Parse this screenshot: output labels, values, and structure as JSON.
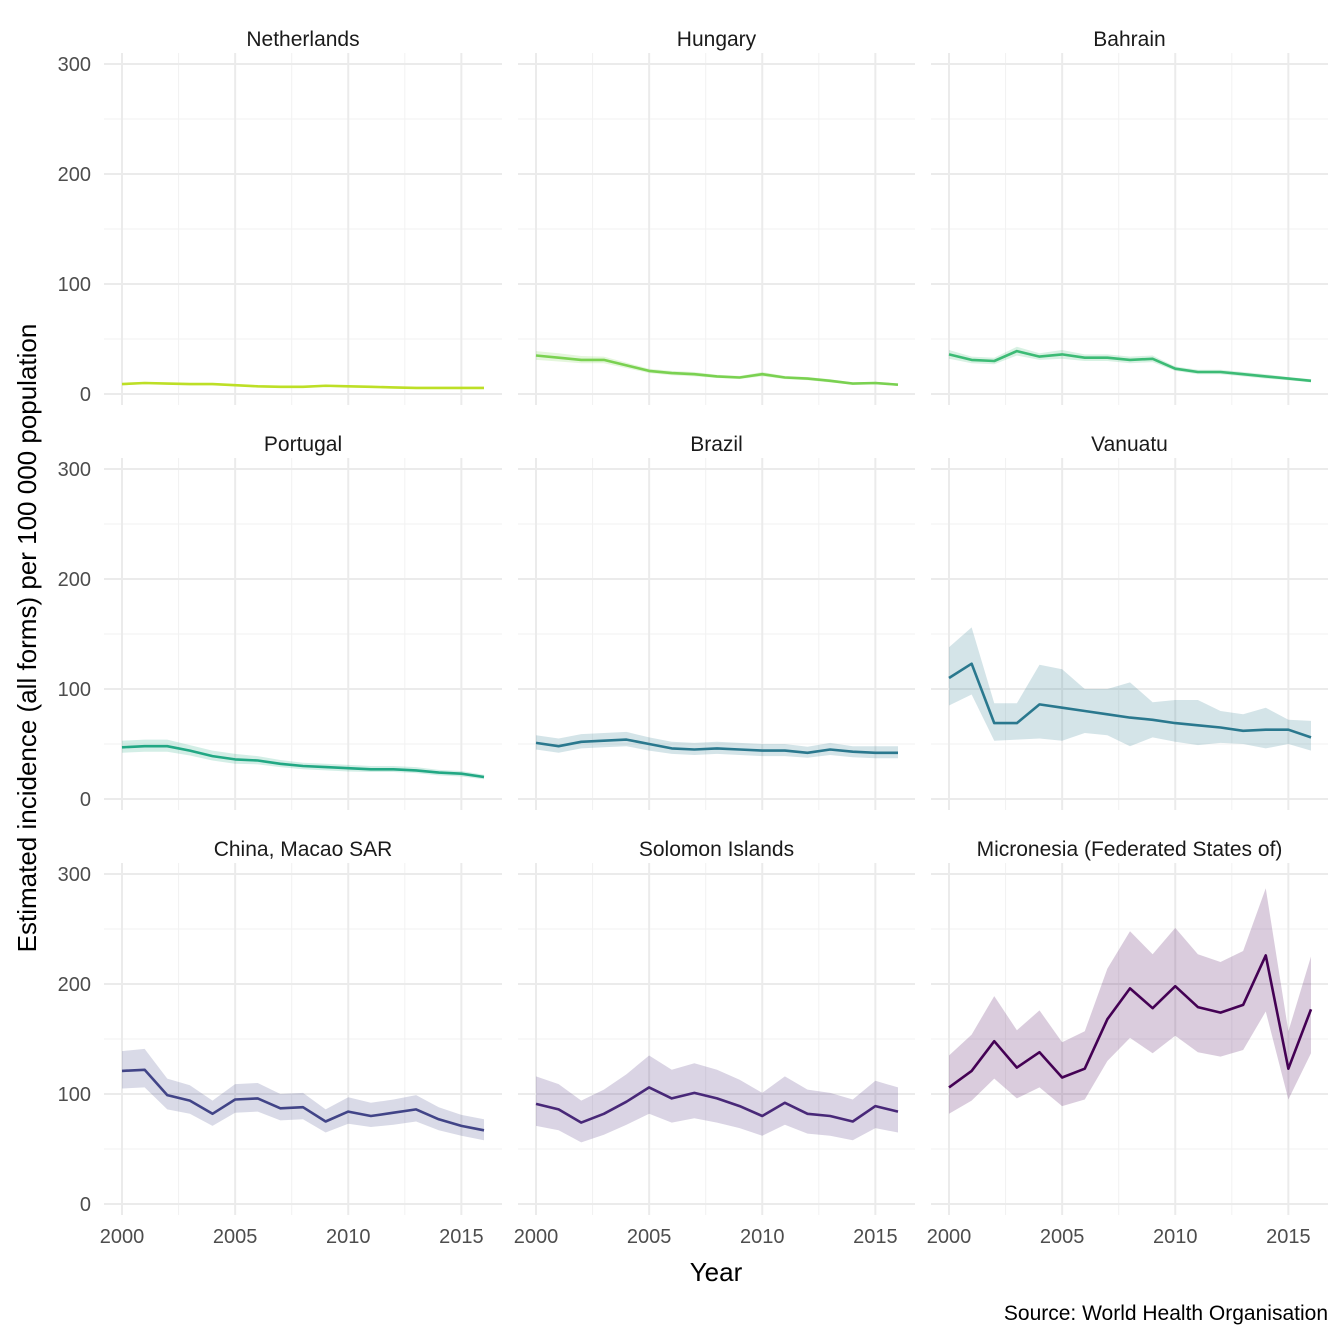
{
  "chart_data": {
    "type": "line",
    "facets": [
      "Netherlands",
      "Hungary",
      "Bahrain",
      "Portugal",
      "Brazil",
      "Vanuatu",
      "China, Macao SAR",
      "Solomon Islands",
      "Micronesia (Federated States of)"
    ],
    "xlabel": "Year",
    "ylabel": "Estimated incidence (all forms) per 100 000 population",
    "caption": "Source: World Health Organisation",
    "xlim": [
      2000,
      2016
    ],
    "ylim": [
      0,
      300
    ],
    "x_ticks": [
      "2000",
      "2005",
      "2010",
      "2015"
    ],
    "y_ticks": [
      "0",
      "100",
      "200",
      "300"
    ],
    "grid": true,
    "x": [
      2000,
      2001,
      2002,
      2003,
      2004,
      2005,
      2006,
      2007,
      2008,
      2009,
      2010,
      2011,
      2012,
      2013,
      2014,
      2015,
      2016
    ],
    "series": [
      {
        "name": "Netherlands",
        "color": "#bddf26",
        "values": [
          9,
          10,
          9.5,
          9,
          9,
          8,
          7,
          6.5,
          6.5,
          7.5,
          7,
          6.5,
          6,
          5.5,
          5.5,
          5.5,
          5.5
        ],
        "lower": [
          8,
          9,
          8.5,
          8,
          8,
          7,
          6,
          5.5,
          5.5,
          6.5,
          6,
          5.5,
          5,
          4.5,
          4.5,
          4.5,
          4.5
        ],
        "upper": [
          10,
          11,
          10.5,
          10,
          10,
          9,
          8,
          7.5,
          7.5,
          8.5,
          8,
          7.5,
          7,
          6.5,
          6.5,
          6.5,
          6.5
        ]
      },
      {
        "name": "Hungary",
        "color": "#7ad151",
        "values": [
          35,
          33,
          31,
          31,
          26,
          21,
          19,
          18,
          16,
          15,
          18,
          15,
          14,
          12,
          9.5,
          10,
          8.5
        ],
        "lower": [
          31,
          29.5,
          28,
          28,
          23.5,
          19,
          17,
          16,
          14.5,
          13.5,
          16,
          13.5,
          12.5,
          10.5,
          8.5,
          8.5,
          7.5
        ],
        "upper": [
          39,
          37,
          34.5,
          34,
          28.5,
          23,
          21,
          20,
          17.5,
          16.5,
          20,
          16.5,
          15.5,
          13.5,
          10.5,
          11,
          9.5
        ]
      },
      {
        "name": "Bahrain",
        "color": "#3cbb75",
        "values": [
          36,
          31,
          30,
          39,
          34,
          36,
          33,
          33,
          31,
          32,
          23,
          20,
          20,
          18,
          16,
          14,
          12
        ],
        "lower": [
          32,
          28,
          27,
          35,
          31,
          32,
          30,
          30,
          28,
          29,
          21,
          18,
          18,
          16,
          14,
          12.5,
          10.5
        ],
        "upper": [
          40,
          34,
          33,
          43,
          37,
          40,
          36,
          36,
          34,
          35,
          25,
          22,
          22,
          20,
          18,
          15.5,
          13.5
        ]
      },
      {
        "name": "Portugal",
        "color": "#22a884",
        "values": [
          47,
          48,
          48,
          44,
          39,
          36,
          35,
          32,
          30,
          29,
          28,
          27,
          27,
          26,
          24,
          23,
          20
        ],
        "lower": [
          42,
          43,
          43,
          39.5,
          35,
          32,
          31.5,
          29,
          27,
          26,
          25,
          24.5,
          24.5,
          23.5,
          21.5,
          20.5,
          18
        ],
        "upper": [
          53,
          54,
          54,
          49,
          44,
          41,
          39,
          35.5,
          33,
          32,
          31,
          30,
          30,
          29,
          26.5,
          25.5,
          22
        ]
      },
      {
        "name": "Brazil",
        "color": "#2a788e",
        "values": [
          51,
          48,
          52,
          53,
          54,
          50,
          46,
          45,
          46,
          45,
          44,
          44,
          42,
          45,
          43,
          42,
          42
        ],
        "lower": [
          45,
          42,
          46,
          47,
          48,
          44,
          41,
          40,
          41,
          40,
          39,
          39,
          37.5,
          40,
          38,
          37,
          37
        ],
        "upper": [
          58,
          55,
          59,
          60,
          61,
          56,
          52,
          51,
          52,
          51,
          50,
          50,
          47.5,
          51,
          48,
          48,
          48
        ]
      },
      {
        "name": "Vanuatu",
        "color": "#2a788e",
        "values": [
          110,
          123,
          69,
          69,
          86,
          83,
          80,
          77,
          74,
          72,
          69,
          67,
          65,
          62,
          63,
          63,
          56
        ],
        "lower": [
          85,
          95,
          53,
          54,
          55,
          53,
          60,
          58,
          48,
          56,
          52,
          49,
          51,
          50,
          46,
          50,
          44
        ],
        "upper": [
          138,
          156,
          87,
          87,
          122,
          118,
          100,
          100,
          106,
          88,
          90,
          90,
          80,
          77,
          83,
          72,
          71
        ]
      },
      {
        "name": "China, Macao SAR",
        "color": "#414487",
        "values": [
          121,
          122,
          99,
          94,
          82,
          95,
          96,
          87,
          88,
          75,
          84,
          80,
          83,
          86,
          77,
          71,
          67
        ],
        "lower": [
          105,
          106,
          86,
          82,
          71,
          83,
          84,
          76,
          77,
          65,
          73,
          70,
          72,
          75,
          67,
          62,
          58
        ],
        "upper": [
          139,
          141,
          114,
          108,
          94,
          109,
          110,
          100,
          101,
          86,
          97,
          92,
          95,
          99,
          88,
          81,
          77
        ]
      },
      {
        "name": "Solomon Islands",
        "color": "#482878",
        "values": [
          91,
          86,
          74,
          82,
          93,
          106,
          96,
          101,
          96,
          89,
          80,
          92,
          82,
          80,
          75,
          89,
          84
        ],
        "lower": [
          71,
          67,
          56,
          63,
          72,
          82,
          74,
          78,
          74,
          69,
          62,
          72,
          64,
          62,
          58,
          69,
          65
        ],
        "upper": [
          116,
          109,
          94,
          104,
          118,
          135,
          122,
          128,
          122,
          113,
          101,
          116,
          104,
          101,
          95,
          112,
          106
        ]
      },
      {
        "name": "Micronesia (Federated States of)",
        "color": "#440154",
        "values": [
          106,
          121,
          148,
          124,
          138,
          115,
          123,
          168,
          196,
          178,
          198,
          179,
          174,
          181,
          226,
          123,
          177
        ],
        "lower": [
          82,
          94,
          114,
          96,
          106,
          89,
          95,
          130,
          151,
          137,
          153,
          138,
          134,
          140,
          175,
          95,
          137
        ],
        "upper": [
          135,
          154,
          189,
          158,
          176,
          147,
          157,
          214,
          248,
          227,
          251,
          227,
          220,
          230,
          287,
          157,
          225
        ]
      }
    ]
  }
}
